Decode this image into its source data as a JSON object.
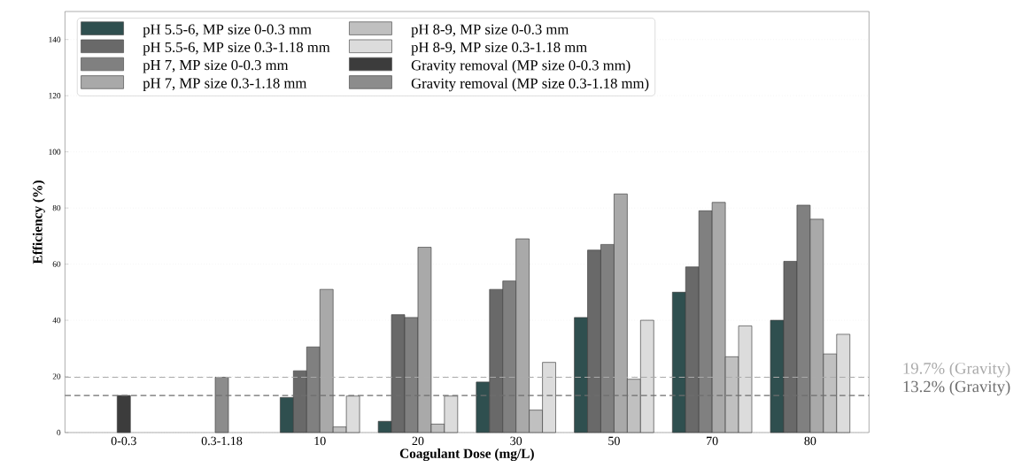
{
  "chart_data": {
    "type": "bar",
    "xlabel": "Coagulant Dose (mg/L)",
    "ylabel": "Efficiency (%)",
    "categories": [
      "0-0.3",
      "0.3-1.18",
      "10",
      "20",
      "30",
      "50",
      "70",
      "80"
    ],
    "series": [
      {
        "name": "pH 5.5-6, MP size 0-0.3 mm",
        "color": "#2f4f4f",
        "values": [
          null,
          null,
          12.5,
          4,
          18,
          41,
          50,
          40
        ]
      },
      {
        "name": "pH 5.5-6, MP size 0.3-1.18 mm",
        "color": "#696969",
        "values": [
          null,
          null,
          22,
          42,
          51,
          65,
          59,
          61
        ]
      },
      {
        "name": "pH 7, MP size 0-0.3 mm",
        "color": "#808080",
        "values": [
          null,
          null,
          30.5,
          41,
          54,
          67,
          79,
          81
        ]
      },
      {
        "name": "pH 7, MP size 0.3-1.18 mm",
        "color": "#a9a9a9",
        "values": [
          null,
          null,
          51,
          66,
          69,
          85,
          82,
          76
        ]
      },
      {
        "name": "pH 8-9, MP size 0-0.3 mm",
        "color": "#c0c0c0",
        "values": [
          null,
          null,
          2,
          3,
          8,
          19,
          27,
          28
        ]
      },
      {
        "name": "pH 8-9, MP size 0.3-1.18 mm",
        "color": "#dcdcdc",
        "values": [
          null,
          null,
          13,
          13,
          25,
          40,
          38,
          35
        ]
      },
      {
        "name": "Gravity removal (MP size 0-0.3 mm)",
        "color": "#3c3c3c",
        "values": [
          13.2,
          null,
          null,
          null,
          null,
          null,
          null,
          null
        ]
      },
      {
        "name": "Gravity removal (MP size 0.3-1.18 mm)",
        "color": "#8c8c8c",
        "values": [
          null,
          19.7,
          null,
          null,
          null,
          null,
          null,
          null
        ]
      }
    ],
    "ylim": [
      0,
      150
    ],
    "yticks": [
      0,
      20,
      40,
      60,
      80,
      100,
      120,
      140
    ],
    "ref_lines": [
      {
        "axis": "y",
        "value": 19.7,
        "label": "19.7% (Gravity)",
        "color": "#aaaaaa",
        "line_style": "dashed"
      },
      {
        "axis": "y",
        "value": 13.2,
        "label": "13.2% (Gravity)",
        "color": "#6e6e6e",
        "line_style": "dashed"
      }
    ],
    "grid": "y",
    "legend": "top left"
  }
}
